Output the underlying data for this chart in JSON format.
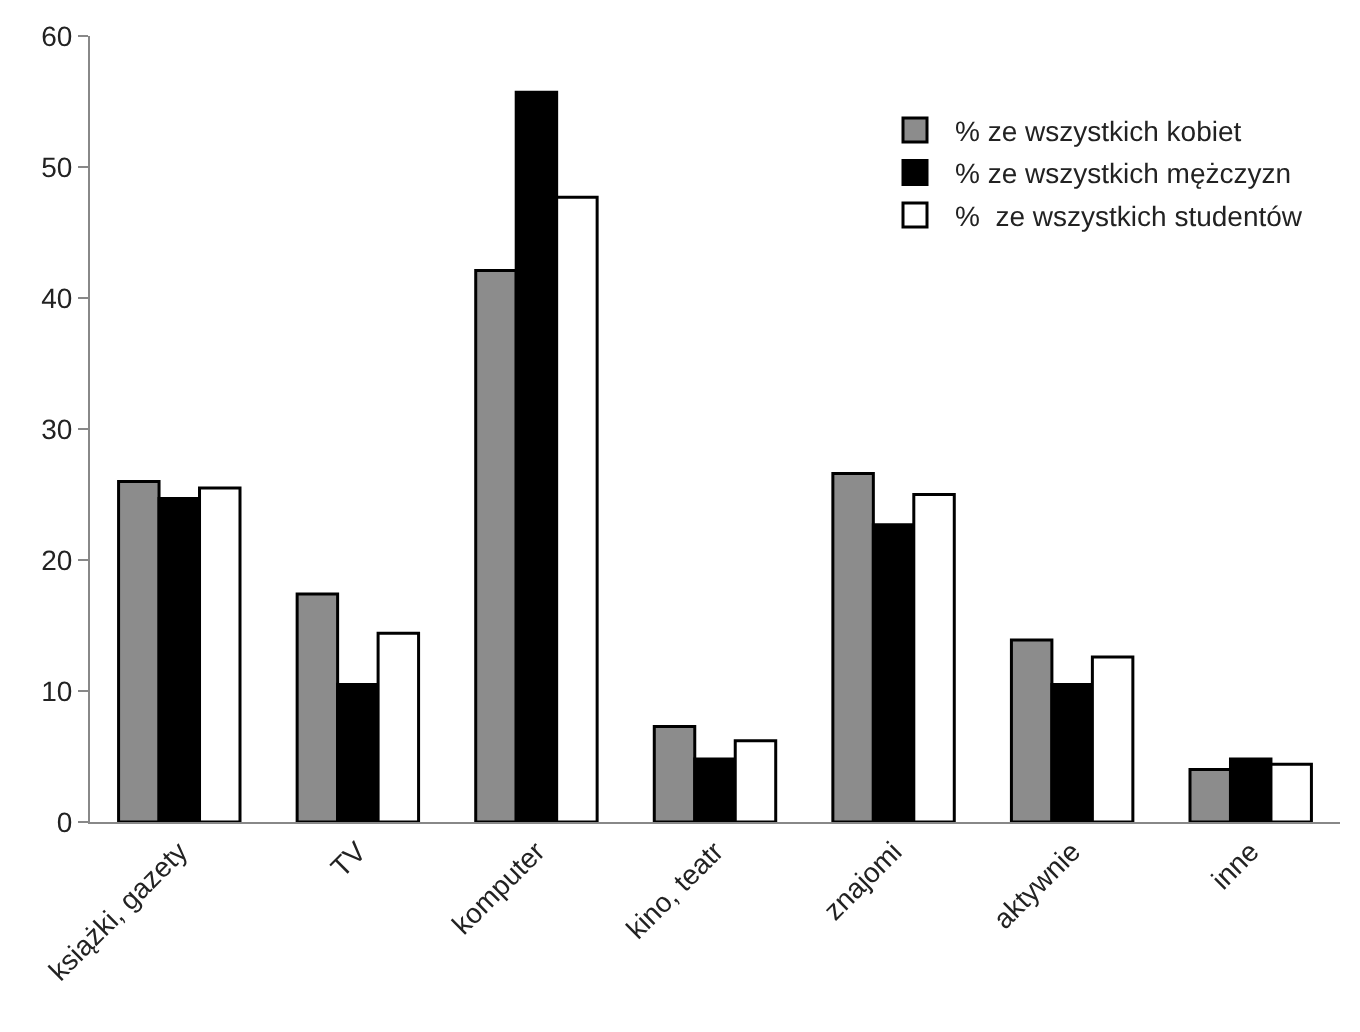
{
  "chart_data": {
    "type": "bar",
    "categories": [
      "książki, gazety",
      "TV",
      "komputer",
      "kino, teatr",
      "znajomi",
      "aktywnie",
      "inne"
    ],
    "series": [
      {
        "name": "% ze wszystkich kobiet",
        "color": "#8c8c8c",
        "values": [
          26.0,
          17.4,
          42.1,
          7.3,
          26.6,
          13.9,
          4.0
        ]
      },
      {
        "name": "% ze wszystkich mężczyzn",
        "color": "#000000",
        "values": [
          24.7,
          10.5,
          55.7,
          4.8,
          22.7,
          10.5,
          4.8
        ]
      },
      {
        "name": "%  ze wszystkich studentów",
        "color": "#ffffff",
        "values": [
          25.5,
          14.4,
          47.7,
          6.2,
          25.0,
          12.6,
          4.4
        ]
      }
    ],
    "ylim": [
      0,
      60
    ],
    "yticks": [
      0,
      10,
      20,
      30,
      40,
      50,
      60
    ],
    "grid": false,
    "legend": "top right"
  }
}
